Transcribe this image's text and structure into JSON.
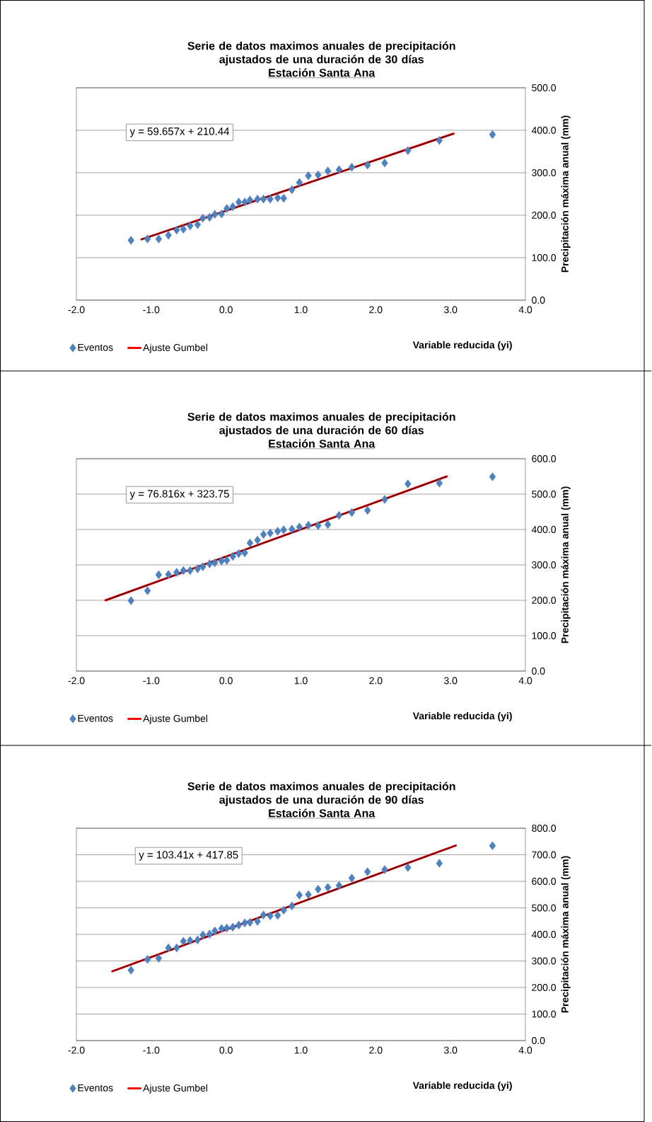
{
  "chart_data": [
    {
      "type": "scatter",
      "title": "Serie de datos maximos anuales de precipitación ajustados de una duración de 30 días",
      "subtitle": "Estación Santa Ana",
      "xlabel": "Variable reducida (yi)",
      "ylabel": "Precipitación máxima anual (mm)",
      "annotations": [
        "y = 59.657x  + 210.44"
      ],
      "grid": "y",
      "legend": "bottom left",
      "xlim": [
        -2,
        4
      ],
      "xticks": [
        {
          "value": -2,
          "label": "-2.0"
        },
        {
          "value": -1,
          "label": "-1.0"
        },
        {
          "value": 0,
          "label": "0.0"
        },
        {
          "value": 1,
          "label": "1.0"
        },
        {
          "value": 2,
          "label": "2.0"
        },
        {
          "value": 3,
          "label": "3.0"
        },
        {
          "value": 4,
          "label": "4.0"
        }
      ],
      "ylim": [
        0,
        500
      ],
      "yticks": [
        {
          "value": 0,
          "label": "0.0"
        },
        {
          "value": 100,
          "label": "100.0"
        },
        {
          "value": 200,
          "label": "200.0"
        },
        {
          "value": 300,
          "label": "300.0"
        },
        {
          "value": 400,
          "label": "400.0"
        },
        {
          "value": 500,
          "label": "500.0"
        }
      ],
      "series": [
        {
          "name": "Eventos",
          "type": "scatter",
          "marker": "diamond",
          "color": "#4f81bd",
          "x": [
            -1.27,
            -1.05,
            -0.9,
            -0.77,
            -0.66,
            -0.57,
            -0.48,
            -0.38,
            -0.31,
            -0.22,
            -0.15,
            -0.06,
            0.01,
            0.09,
            0.17,
            0.25,
            0.32,
            0.42,
            0.5,
            0.59,
            0.69,
            0.77,
            0.88,
            0.98,
            1.1,
            1.23,
            1.36,
            1.51,
            1.68,
            1.89,
            2.12,
            2.43,
            2.85,
            3.56
          ],
          "values": [
            141,
            144,
            144,
            153,
            165,
            167,
            175,
            178,
            193,
            195,
            202,
            203,
            216,
            220,
            231,
            231,
            236,
            238,
            238,
            238,
            241,
            240,
            260,
            277,
            293,
            295,
            304,
            307,
            313,
            318,
            323,
            352,
            376,
            390
          ]
        },
        {
          "name": "Ajuste Gumbel",
          "type": "line",
          "color": "#ff0000",
          "x": [
            -1.13,
            3.04
          ],
          "values": [
            143,
            392
          ]
        },
        {
          "type": "line",
          "color": "#000000",
          "x": [
            -1.13,
            3.04
          ],
          "values": [
            143,
            392
          ]
        }
      ]
    },
    {
      "type": "scatter",
      "title": "Serie de datos maximos anuales de precipitación ajustados de una duración de 60 días",
      "subtitle": "Estación Santa Ana",
      "xlabel": "Variable reducida (yi)",
      "ylabel": "Precipitación máxima anual (mm)",
      "annotations": [
        "y = 76.816x  + 323.75"
      ],
      "grid": "y",
      "legend": "bottom left",
      "xlim": [
        -2,
        4
      ],
      "xticks": [
        {
          "value": -2,
          "label": "-2.0"
        },
        {
          "value": -1,
          "label": "-1.0"
        },
        {
          "value": 0,
          "label": "0.0"
        },
        {
          "value": 1,
          "label": "1.0"
        },
        {
          "value": 2,
          "label": "2.0"
        },
        {
          "value": 3,
          "label": "3.0"
        },
        {
          "value": 4,
          "label": "4.0"
        }
      ],
      "ylim": [
        0,
        600
      ],
      "yticks": [
        {
          "value": 0,
          "label": "0.0"
        },
        {
          "value": 100,
          "label": "100.0"
        },
        {
          "value": 200,
          "label": "200.0"
        },
        {
          "value": 300,
          "label": "300.0"
        },
        {
          "value": 400,
          "label": "400.0"
        },
        {
          "value": 500,
          "label": "500.0"
        },
        {
          "value": 600,
          "label": "600.0"
        }
      ],
      "series": [
        {
          "name": "Eventos",
          "type": "scatter",
          "marker": "diamond",
          "color": "#4f81bd",
          "x": [
            -1.27,
            -1.05,
            -0.9,
            -0.77,
            -0.66,
            -0.57,
            -0.48,
            -0.38,
            -0.31,
            -0.22,
            -0.15,
            -0.06,
            0.01,
            0.09,
            0.17,
            0.25,
            0.32,
            0.42,
            0.5,
            0.59,
            0.69,
            0.77,
            0.88,
            0.98,
            1.1,
            1.23,
            1.36,
            1.51,
            1.68,
            1.89,
            2.12,
            2.43,
            2.85,
            3.56
          ],
          "values": [
            199,
            227,
            272,
            273,
            279,
            284,
            284,
            289,
            295,
            303,
            306,
            311,
            313,
            324,
            332,
            334,
            362,
            370,
            386,
            390,
            395,
            399,
            401,
            407,
            412,
            411,
            414,
            440,
            448,
            454,
            485,
            529,
            531,
            549
          ]
        },
        {
          "name": "Ajuste Gumbel",
          "type": "line",
          "color": "#ff0000",
          "x": [
            -1.61,
            2.95
          ],
          "values": [
            200,
            550
          ]
        },
        {
          "type": "line",
          "color": "#000000",
          "x": [
            -1.61,
            2.95
          ],
          "values": [
            200,
            550
          ]
        }
      ]
    },
    {
      "type": "scatter",
      "title": "Serie de datos maximos anuales de precipitación ajustados de una duración de 90 días",
      "subtitle": "Estación Santa Ana",
      "xlabel": "Variable reducida (yi)",
      "ylabel": "Precipitación máxima anual (mm)",
      "annotations": [
        "y = 103.41x  + 417.85"
      ],
      "grid": "y",
      "legend": "bottom left",
      "xlim": [
        -2,
        4
      ],
      "xticks": [
        {
          "value": -2,
          "label": "-2.0"
        },
        {
          "value": -1,
          "label": "-1.0"
        },
        {
          "value": 0,
          "label": "0.0"
        },
        {
          "value": 1,
          "label": "1.0"
        },
        {
          "value": 2,
          "label": "2.0"
        },
        {
          "value": 3,
          "label": "3.0"
        },
        {
          "value": 4,
          "label": "4.0"
        }
      ],
      "ylim": [
        0,
        800
      ],
      "yticks": [
        {
          "value": 0,
          "label": "0.0"
        },
        {
          "value": 100,
          "label": "100.0"
        },
        {
          "value": 200,
          "label": "200.0"
        },
        {
          "value": 300,
          "label": "300.0"
        },
        {
          "value": 400,
          "label": "400.0"
        },
        {
          "value": 500,
          "label": "500.0"
        },
        {
          "value": 600,
          "label": "600.0"
        },
        {
          "value": 700,
          "label": "700.0"
        },
        {
          "value": 800,
          "label": "800.0"
        }
      ],
      "series": [
        {
          "name": "Eventos",
          "type": "scatter",
          "marker": "diamond",
          "color": "#4f81bd",
          "x": [
            -1.27,
            -1.05,
            -0.9,
            -0.77,
            -0.66,
            -0.57,
            -0.48,
            -0.38,
            -0.31,
            -0.22,
            -0.15,
            -0.06,
            0.01,
            0.09,
            0.17,
            0.25,
            0.32,
            0.42,
            0.5,
            0.59,
            0.69,
            0.77,
            0.88,
            0.98,
            1.1,
            1.23,
            1.36,
            1.51,
            1.68,
            1.89,
            2.12,
            2.43,
            2.85,
            3.56
          ],
          "values": [
            265,
            306,
            310,
            349,
            349,
            374,
            377,
            379,
            398,
            401,
            413,
            422,
            424,
            427,
            435,
            443,
            445,
            449,
            473,
            470,
            472,
            491,
            507,
            548,
            550,
            570,
            577,
            584,
            612,
            636,
            644,
            652,
            668,
            734
          ]
        },
        {
          "name": "Ajuste Gumbel",
          "type": "line",
          "color": "#ff0000",
          "x": [
            -1.52,
            3.07
          ],
          "values": [
            261,
            735
          ]
        },
        {
          "type": "line",
          "color": "#000000",
          "x": [
            -1.52,
            3.07
          ],
          "values": [
            261,
            735
          ]
        }
      ]
    }
  ]
}
